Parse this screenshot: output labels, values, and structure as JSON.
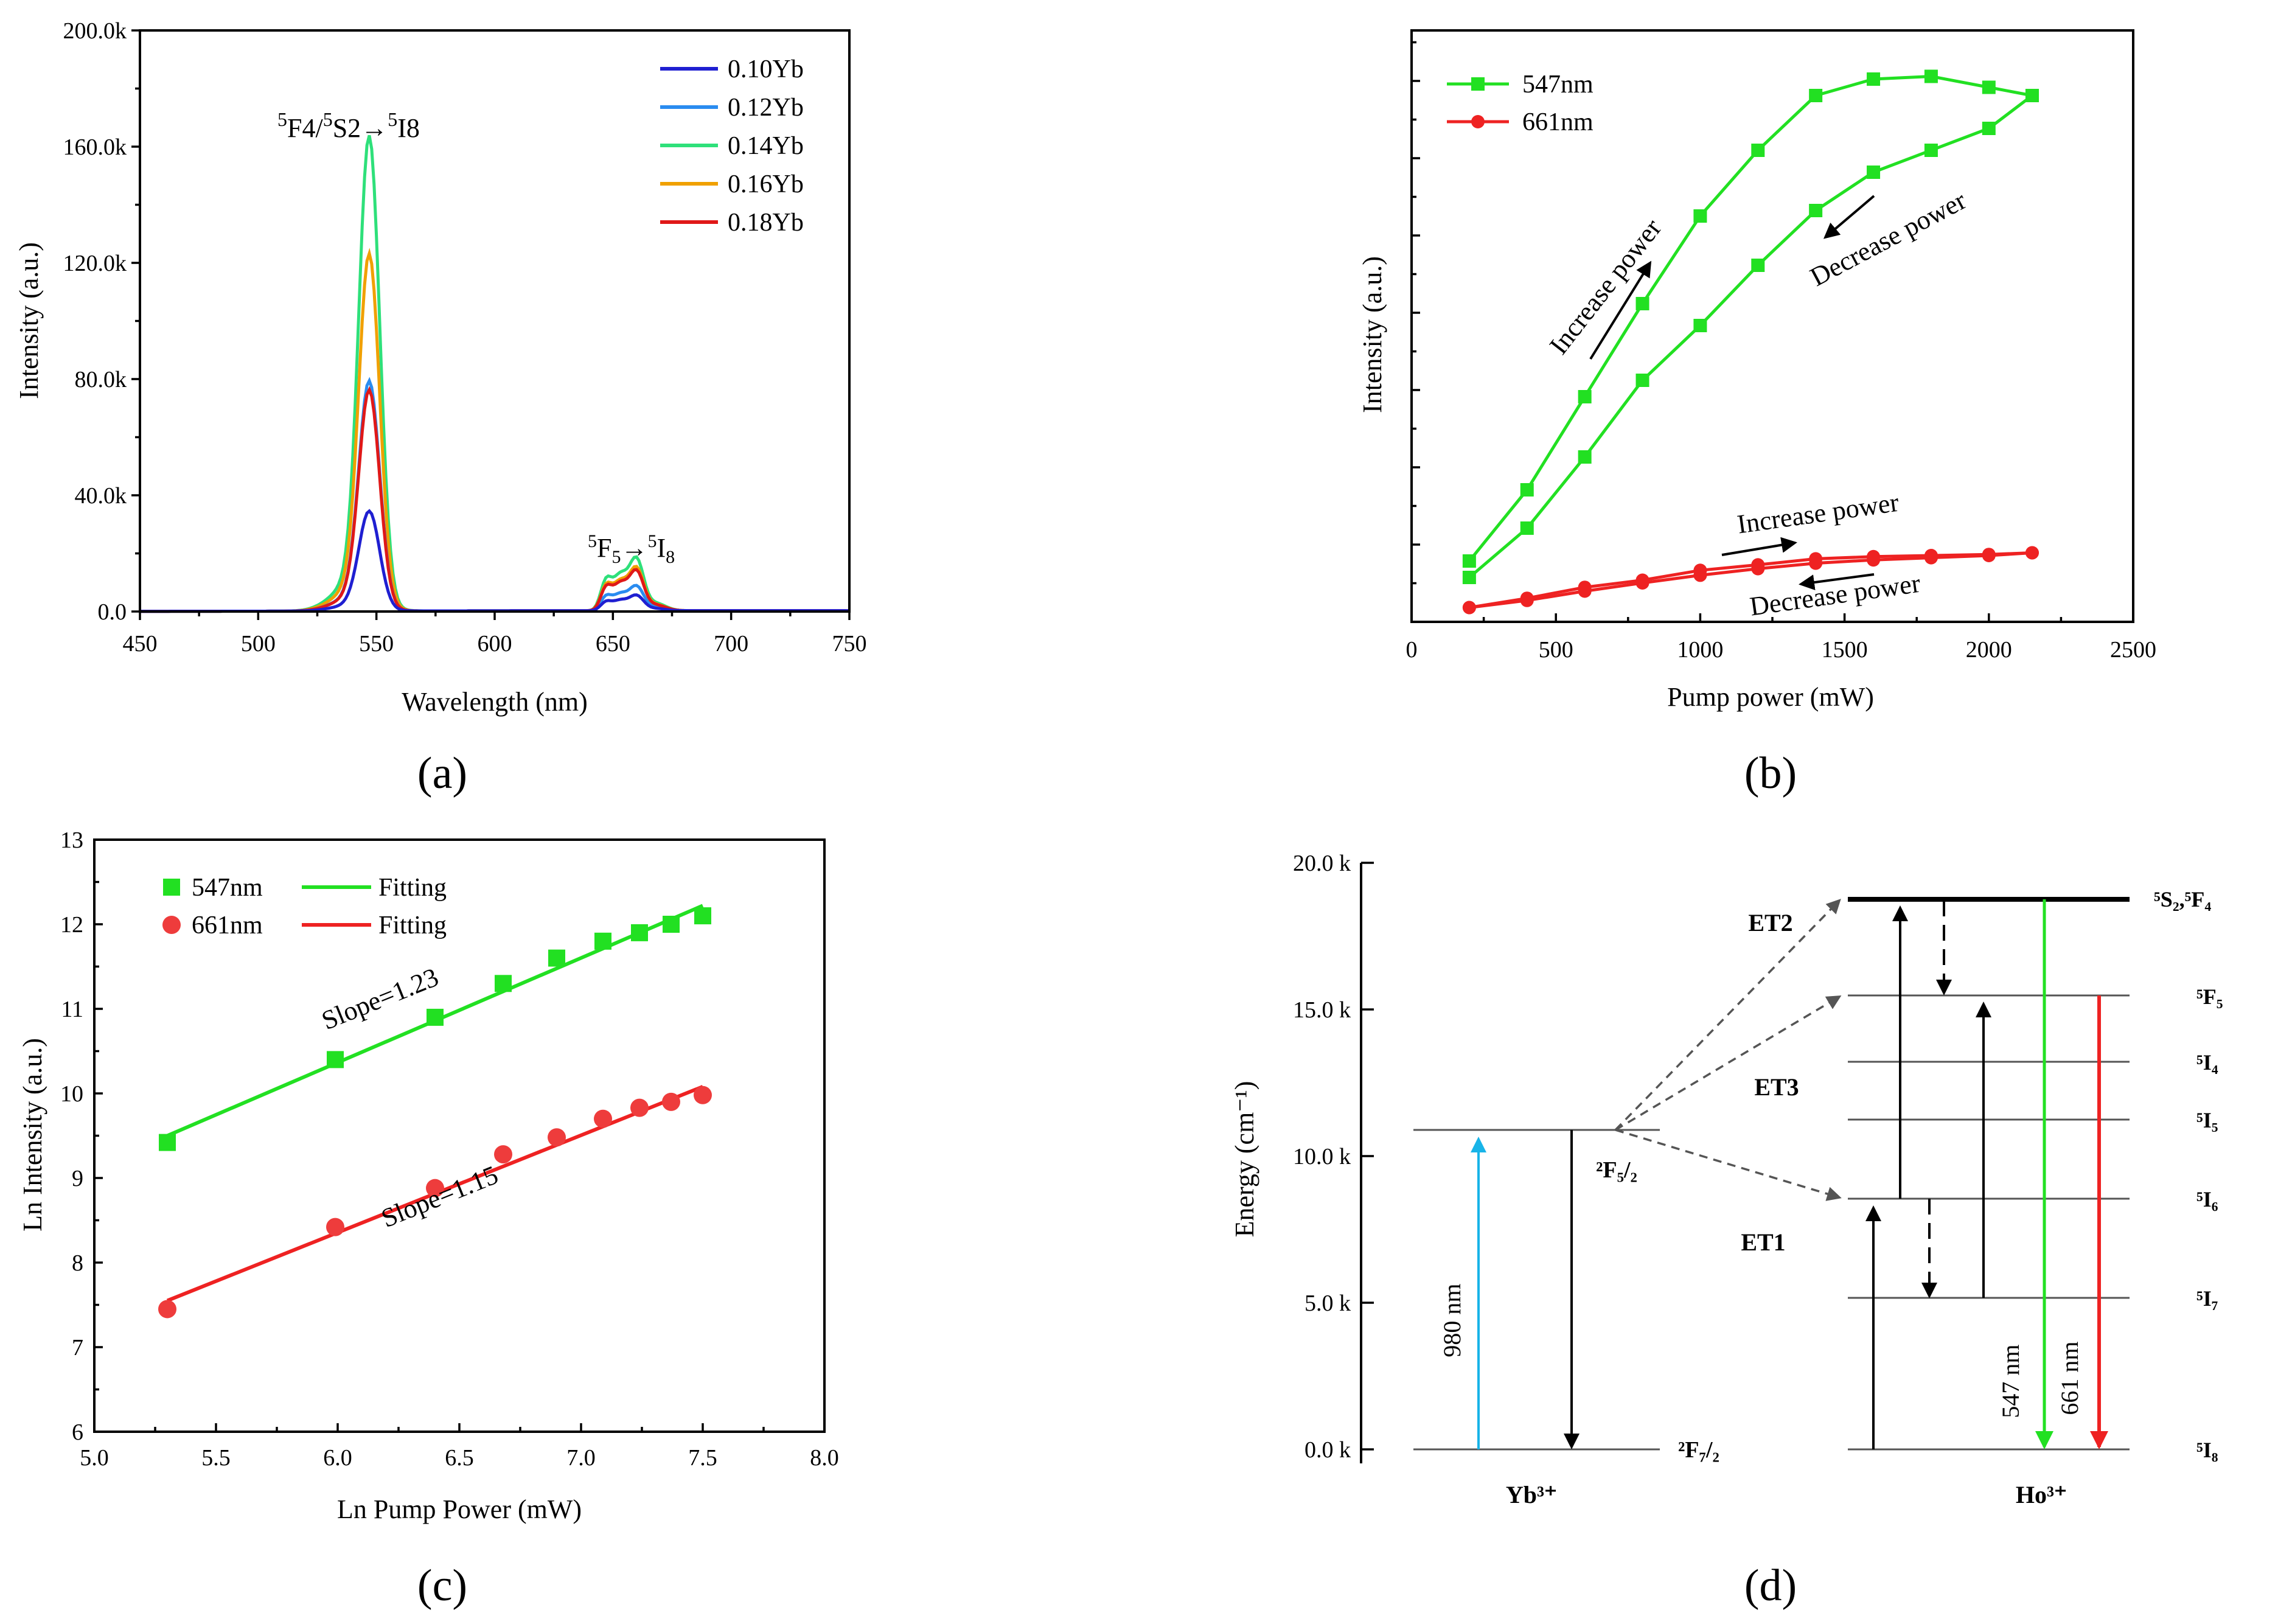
{
  "captions": {
    "a": "(a)",
    "b": "(b)",
    "c": "(c)",
    "d": "(d)"
  },
  "panel_a": {
    "xlabel": "Wavelength (nm)",
    "ylabel": "Intensity (a.u.)",
    "xticks": [
      "450",
      "500",
      "550",
      "600",
      "650",
      "700",
      "750"
    ],
    "yticks": [
      "0.0",
      "40.0k",
      "80.0k",
      "120.0k",
      "160.0k",
      "200.0k"
    ],
    "legend": [
      "0.10Yb",
      "0.12Yb",
      "0.14Yb",
      "0.16Yb",
      "0.18Yb"
    ],
    "peak1_label": "5F4/5S2→5I8",
    "peak2_label": "5F5→5I8"
  },
  "panel_b": {
    "xlabel": "Pump power (mW)",
    "ylabel": "Intensity (a.u.)",
    "xticks": [
      "0",
      "500",
      "1000",
      "1500",
      "2000",
      "2500"
    ],
    "legend": [
      "547nm",
      "661nm"
    ],
    "ann_increase_green": "Increase power",
    "ann_decrease_green": "Decrease power",
    "ann_increase_red": "Increase power",
    "ann_decrease_red": "Decrease power"
  },
  "panel_c": {
    "xlabel": "Ln Pump Power (mW)",
    "ylabel": "Ln Intensity (a.u.)",
    "xticks": [
      "5.0",
      "5.5",
      "6.0",
      "6.5",
      "7.0",
      "7.5",
      "8.0"
    ],
    "yticks": [
      "6",
      "7",
      "8",
      "9",
      "10",
      "11",
      "12",
      "13"
    ],
    "legend_547": "547nm",
    "legend_661": "661nm",
    "legend_fit1": "Fitting",
    "legend_fit2": "Fitting",
    "slope_547": "Slope=1.23",
    "slope_661": "Slope=1.15"
  },
  "panel_d": {
    "ylabel": "Energy (cm⁻¹)",
    "yticks": [
      "0.0 k",
      "5.0 k",
      "10.0 k",
      "15.0 k",
      "20.0 k"
    ],
    "yb_label": "Yb³⁺",
    "ho_label": "Ho³⁺",
    "yb_levels": [
      "²F₅/₂",
      "²F₇/₂"
    ],
    "ho_levels": [
      "⁵S₂,⁵F₄",
      "⁵F₅",
      "⁵I₄",
      "⁵I₅",
      "⁵I₆",
      "⁵I₇",
      "⁵I₈"
    ],
    "et_labels": [
      "ET2",
      "ET3",
      "ET1"
    ],
    "pump_label": "980 nm",
    "emission_labels": [
      "547 nm",
      "661 nm"
    ]
  },
  "colors": {
    "s010": "#1f1fd1",
    "s012": "#2a8cf0",
    "s014": "#2ee07a",
    "s016": "#f0a000",
    "s018": "#e01818",
    "green": "#22e022",
    "red": "#ee2222",
    "cyan": "#18b4e8",
    "gray": "#555555"
  },
  "chart_data": [
    {
      "panel": "a",
      "type": "line",
      "title": "",
      "xlabel": "Wavelength (nm)",
      "ylabel": "Intensity (a.u.)",
      "xlim": [
        450,
        750
      ],
      "ylim": [
        0,
        200000
      ],
      "series": [
        {
          "name": "0.10Yb",
          "peak1_x": 547,
          "peak1_y": 33000,
          "peak2_x": 660,
          "peak2_y": 5000
        },
        {
          "name": "0.12Yb",
          "peak1_x": 547,
          "peak1_y": 76000,
          "peak2_x": 660,
          "peak2_y": 8000
        },
        {
          "name": "0.14Yb",
          "peak1_x": 547,
          "peak1_y": 157000,
          "peak2_x": 660,
          "peak2_y": 17000
        },
        {
          "name": "0.16Yb",
          "peak1_x": 547,
          "peak1_y": 118000,
          "peak2_x": 660,
          "peak2_y": 14000
        },
        {
          "name": "0.18Yb",
          "peak1_x": 547,
          "peak1_y": 73000,
          "peak2_x": 660,
          "peak2_y": 13000
        }
      ]
    },
    {
      "panel": "b",
      "type": "line",
      "xlabel": "Pump power (mW)",
      "ylabel": "Intensity (a.u.)",
      "xlim": [
        0,
        2500
      ],
      "ylim": [
        0,
        100
      ],
      "series": [
        {
          "name": "547nm (increase)",
          "x": [
            200,
            400,
            600,
            800,
            1000,
            1200,
            1400,
            1600,
            1800,
            2000,
            2150
          ],
          "y": [
            10,
            23,
            40,
            57,
            73,
            85,
            95,
            98,
            98.5,
            96.5,
            95
          ]
        },
        {
          "name": "547nm (decrease)",
          "x": [
            200,
            400,
            600,
            800,
            1000,
            1200,
            1400,
            1600,
            1800,
            2000,
            2150
          ],
          "y": [
            7,
            16,
            29,
            43,
            53,
            64,
            74,
            81,
            85,
            89,
            95
          ]
        },
        {
          "name": "661nm (increase)",
          "x": [
            200,
            400,
            600,
            800,
            1000,
            1200,
            1400,
            1600,
            1800,
            2000,
            2150
          ],
          "y": [
            1.5,
            3.2,
            5.2,
            6.5,
            8.3,
            9.3,
            10.4,
            10.8,
            11,
            11.2,
            11.5
          ]
        },
        {
          "name": "661nm (decrease)",
          "x": [
            200,
            400,
            600,
            800,
            1000,
            1200,
            1400,
            1600,
            1800,
            2000,
            2150
          ],
          "y": [
            1.5,
            2.8,
            4.5,
            6.0,
            7.4,
            8.6,
            9.6,
            10.2,
            10.6,
            11.0,
            11.5
          ]
        }
      ]
    },
    {
      "panel": "c",
      "type": "scatter",
      "xlabel": "Ln Pump Power (mW)",
      "ylabel": "Ln Intensity (a.u.)",
      "xlim": [
        5.0,
        8.0
      ],
      "ylim": [
        6,
        13
      ],
      "series": [
        {
          "name": "547nm",
          "x": [
            5.3,
            5.99,
            6.4,
            6.68,
            6.9,
            7.09,
            7.24,
            7.37,
            7.5
          ],
          "y": [
            9.42,
            10.4,
            10.9,
            11.3,
            11.6,
            11.8,
            11.9,
            12.0,
            12.1
          ]
        },
        {
          "name": "661nm",
          "x": [
            5.3,
            5.99,
            6.4,
            6.68,
            6.9,
            7.09,
            7.24,
            7.37,
            7.5
          ],
          "y": [
            7.45,
            8.42,
            8.88,
            9.28,
            9.48,
            9.7,
            9.83,
            9.9,
            9.98
          ]
        },
        {
          "name": "Fitting 547nm",
          "x": [
            5.3,
            7.5
          ],
          "y": [
            9.5,
            12.22
          ]
        },
        {
          "name": "Fitting 661nm",
          "x": [
            5.3,
            7.5
          ],
          "y": [
            7.55,
            10.08
          ]
        }
      ]
    },
    {
      "panel": "d",
      "type": "diagram",
      "ylabel": "Energy (cm⁻¹)",
      "ylim": [
        0,
        20000
      ],
      "yb_levels": {
        "²F₇/₂": 0,
        "²F₅/₂": 10800
      },
      "ho_levels": {
        "⁵I₈": 0,
        "⁵I₇": 5100,
        "⁵I₆": 8600,
        "⁵I₅": 11200,
        "⁵I₄": 13100,
        "⁵F₅": 15300,
        "⁵S₂,⁵F₄": 18900
      }
    }
  ]
}
